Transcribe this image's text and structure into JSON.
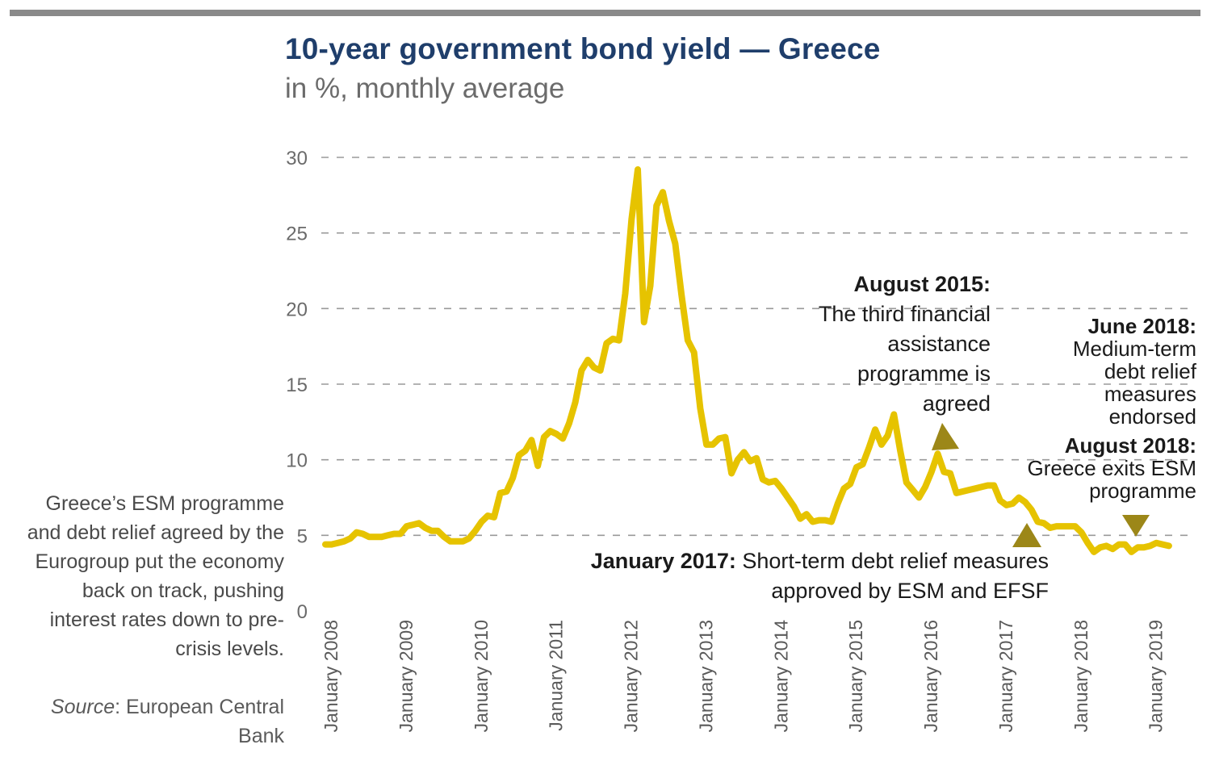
{
  "header": {
    "title": "10-year government bond yield — Greece",
    "subtitle": "in %, monthly average"
  },
  "side_note": "Greece’s ESM programme and debt relief agreed by the Eurogroup put the economy back on track, pushing interest rates down to pre-crisis levels.",
  "source": {
    "label": "Source",
    "text": ": European Central Bank"
  },
  "annotations": {
    "aug2015": {
      "heading": "August 2015:",
      "line1": "The third financial",
      "line2": "assistance",
      "line3": "programme is",
      "line4": "agreed"
    },
    "jun2018": {
      "heading": "June 2018:",
      "line1": "Medium-term",
      "line2": "debt relief",
      "line3": "measures",
      "line4": "endorsed"
    },
    "aug2018": {
      "heading": "August 2018:",
      "line1": "Greece exits ESM",
      "line2": "programme"
    },
    "jan2017": {
      "heading": "January 2017:",
      "line1": " Short-term debt relief measures",
      "line2": "approved by ESM and EFSF"
    }
  },
  "colors": {
    "line": "#e6c300",
    "marker": "#9c8718",
    "grid": "#9a9a9a",
    "title": "#1f3e6b"
  },
  "chart_data": {
    "type": "line",
    "title": "10-year government bond yield — Greece",
    "subtitle": "in %, monthly average",
    "ylim": [
      0,
      30
    ],
    "yticks": [
      0,
      5,
      10,
      15,
      20,
      25,
      30
    ],
    "grid": "horizontal dashed",
    "x_tick_labels": [
      "January 2008",
      "January 2009",
      "January 2010",
      "January 2011",
      "January 2012",
      "January 2013",
      "January 2014",
      "January 2015",
      "January 2016",
      "January 2017",
      "January 2018",
      "January 2019"
    ],
    "x_start": "January 2008",
    "x_frequency": "monthly",
    "values": [
      4.4,
      4.4,
      4.5,
      4.6,
      4.8,
      5.2,
      5.1,
      4.9,
      4.9,
      4.9,
      5.0,
      5.1,
      5.1,
      5.6,
      5.7,
      5.8,
      5.5,
      5.3,
      5.3,
      4.9,
      4.6,
      4.6,
      4.6,
      4.8,
      5.3,
      5.9,
      6.3,
      6.2,
      7.8,
      7.9,
      8.8,
      10.3,
      10.6,
      11.3,
      9.6,
      11.5,
      11.9,
      11.7,
      11.4,
      12.4,
      13.8,
      15.9,
      16.6,
      16.1,
      15.9,
      17.7,
      18.0,
      17.9,
      21.0,
      25.9,
      29.2,
      19.1,
      21.5,
      26.8,
      27.7,
      25.8,
      24.3,
      20.9,
      17.9,
      17.1,
      13.4,
      11.0,
      11.0,
      11.4,
      11.5,
      9.1,
      10.0,
      10.5,
      9.9,
      10.1,
      8.7,
      8.5,
      8.6,
      8.1,
      7.5,
      6.9,
      6.1,
      6.4,
      5.9,
      6.0,
      6.0,
      5.9,
      7.1,
      8.1,
      8.4,
      9.5,
      9.7,
      10.8,
      12.0,
      11.0,
      11.6,
      13.0,
      10.6,
      8.5,
      8.0,
      7.5,
      8.2,
      9.2,
      10.4,
      9.2,
      9.1,
      7.8,
      7.9,
      8.0,
      8.1,
      8.2,
      8.3,
      8.3,
      7.3,
      7.0,
      7.1,
      7.5,
      7.2,
      6.7,
      5.9,
      5.8,
      5.5,
      5.6,
      5.6,
      5.6,
      5.6,
      5.2,
      4.5,
      3.9,
      4.2,
      4.3,
      4.1,
      4.4,
      4.4,
      3.9,
      4.2,
      4.2,
      4.3,
      4.5,
      4.4,
      4.3
    ]
  }
}
